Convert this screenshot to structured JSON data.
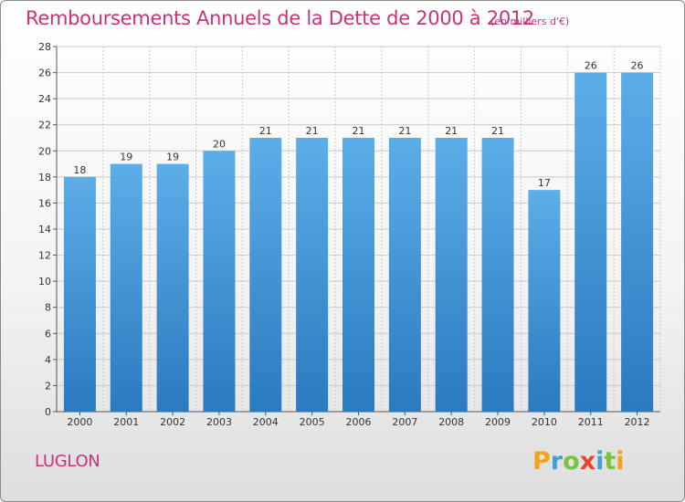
{
  "header": {
    "title": "Remboursements Annuels de la Dette de 2000 à 2012",
    "subtitle": "(en milliers d'€)"
  },
  "footer": {
    "commune": "LUGLON",
    "brand_letters": [
      "P",
      "r",
      "o",
      "x",
      "i",
      "t",
      "i"
    ],
    "brand_colors": [
      "#f4a11c",
      "#3ea2d8",
      "#7cc242",
      "#e8452c",
      "#3ea2d8",
      "#7cc242",
      "#f4a11c"
    ]
  },
  "colors": {
    "title": "#c8337a",
    "bar_top": "#5caee8",
    "bar_bottom": "#2a7ac0",
    "grid": "#c9c9c9"
  },
  "chart_data": {
    "type": "bar",
    "title": "Remboursements Annuels de la Dette de 2000 à 2012",
    "subtitle": "(en milliers d'€)",
    "categories": [
      "2000",
      "2001",
      "2002",
      "2003",
      "2004",
      "2005",
      "2006",
      "2007",
      "2008",
      "2009",
      "2010",
      "2011",
      "2012"
    ],
    "values": [
      18,
      19,
      19,
      20,
      21,
      21,
      21,
      21,
      21,
      21,
      17,
      26,
      26
    ],
    "ylim": [
      0,
      28
    ],
    "yticks": [
      0,
      2,
      4,
      6,
      8,
      10,
      12,
      14,
      16,
      18,
      20,
      22,
      24,
      26,
      28
    ],
    "grid": true,
    "xlabel": "",
    "ylabel": ""
  }
}
